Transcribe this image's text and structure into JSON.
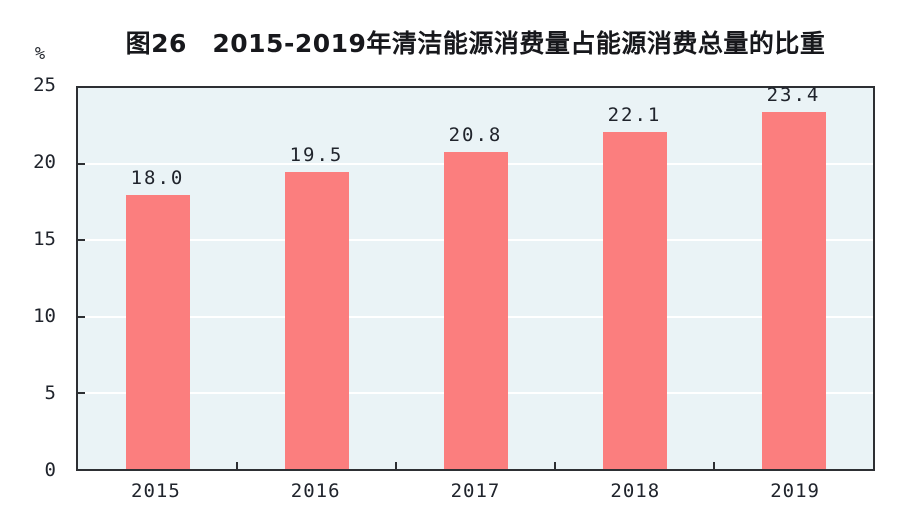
{
  "chart_data": {
    "type": "bar",
    "title": "图26　2015-2019年清洁能源消费量占能源消费总量的比重",
    "unit": "%",
    "categories": [
      "2015",
      "2016",
      "2017",
      "2018",
      "2019"
    ],
    "values": [
      18.0,
      19.5,
      20.8,
      22.1,
      23.4
    ],
    "value_labels": [
      "18.0",
      "19.5",
      "20.8",
      "22.1",
      "23.4"
    ],
    "ylabel": "",
    "xlabel": "",
    "ylim": [
      0,
      25
    ],
    "yticks": [
      0,
      5,
      10,
      15,
      20,
      25
    ],
    "ytick_labels": [
      "0",
      "5",
      "10",
      "15",
      "20",
      "25"
    ],
    "grid": true,
    "legend": "none",
    "colors": {
      "bar": "#fb7e7e",
      "plot_background": "#eaf3f6",
      "gridline": "#ffffff",
      "axis": "#2d2f33",
      "text": "#20242c"
    }
  }
}
